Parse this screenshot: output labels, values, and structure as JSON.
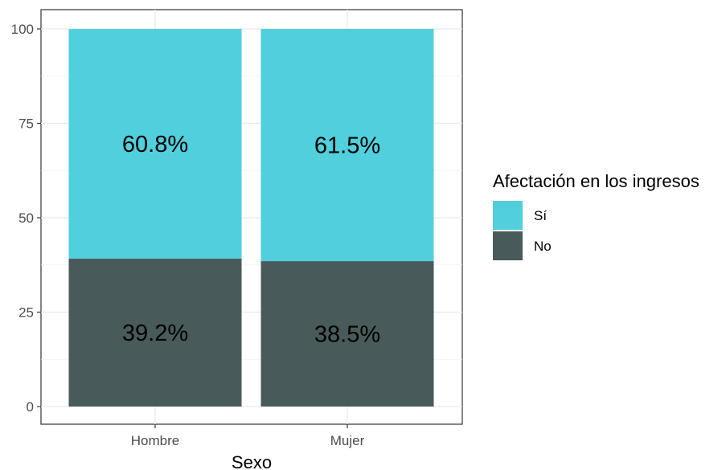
{
  "chart_data": {
    "type": "bar",
    "stacked": true,
    "categories": [
      "Hombre",
      "Mujer"
    ],
    "series": [
      {
        "name": "No",
        "values": [
          39.2,
          38.5
        ],
        "labels": [
          "39.2%",
          "38.5%"
        ]
      },
      {
        "name": "Sí",
        "values": [
          60.8,
          61.5
        ],
        "labels": [
          "60.8%",
          "61.5%"
        ]
      }
    ],
    "xlabel": "Sexo",
    "ylabel": "",
    "ylim": [
      0,
      100
    ],
    "yticks": [
      0,
      25,
      50,
      75,
      100
    ],
    "ytick_labels": [
      "0",
      "25",
      "50",
      "75",
      "100"
    ],
    "grid": true,
    "legend": {
      "title": "Afectación en los ingresos",
      "placement": "right",
      "items": [
        {
          "label": "Sí",
          "color": "#52cfdc"
        },
        {
          "label": "No",
          "color": "#485b5a"
        }
      ]
    },
    "colors": {
      "Sí": "#52cfdc",
      "No": "#485b5a"
    }
  }
}
